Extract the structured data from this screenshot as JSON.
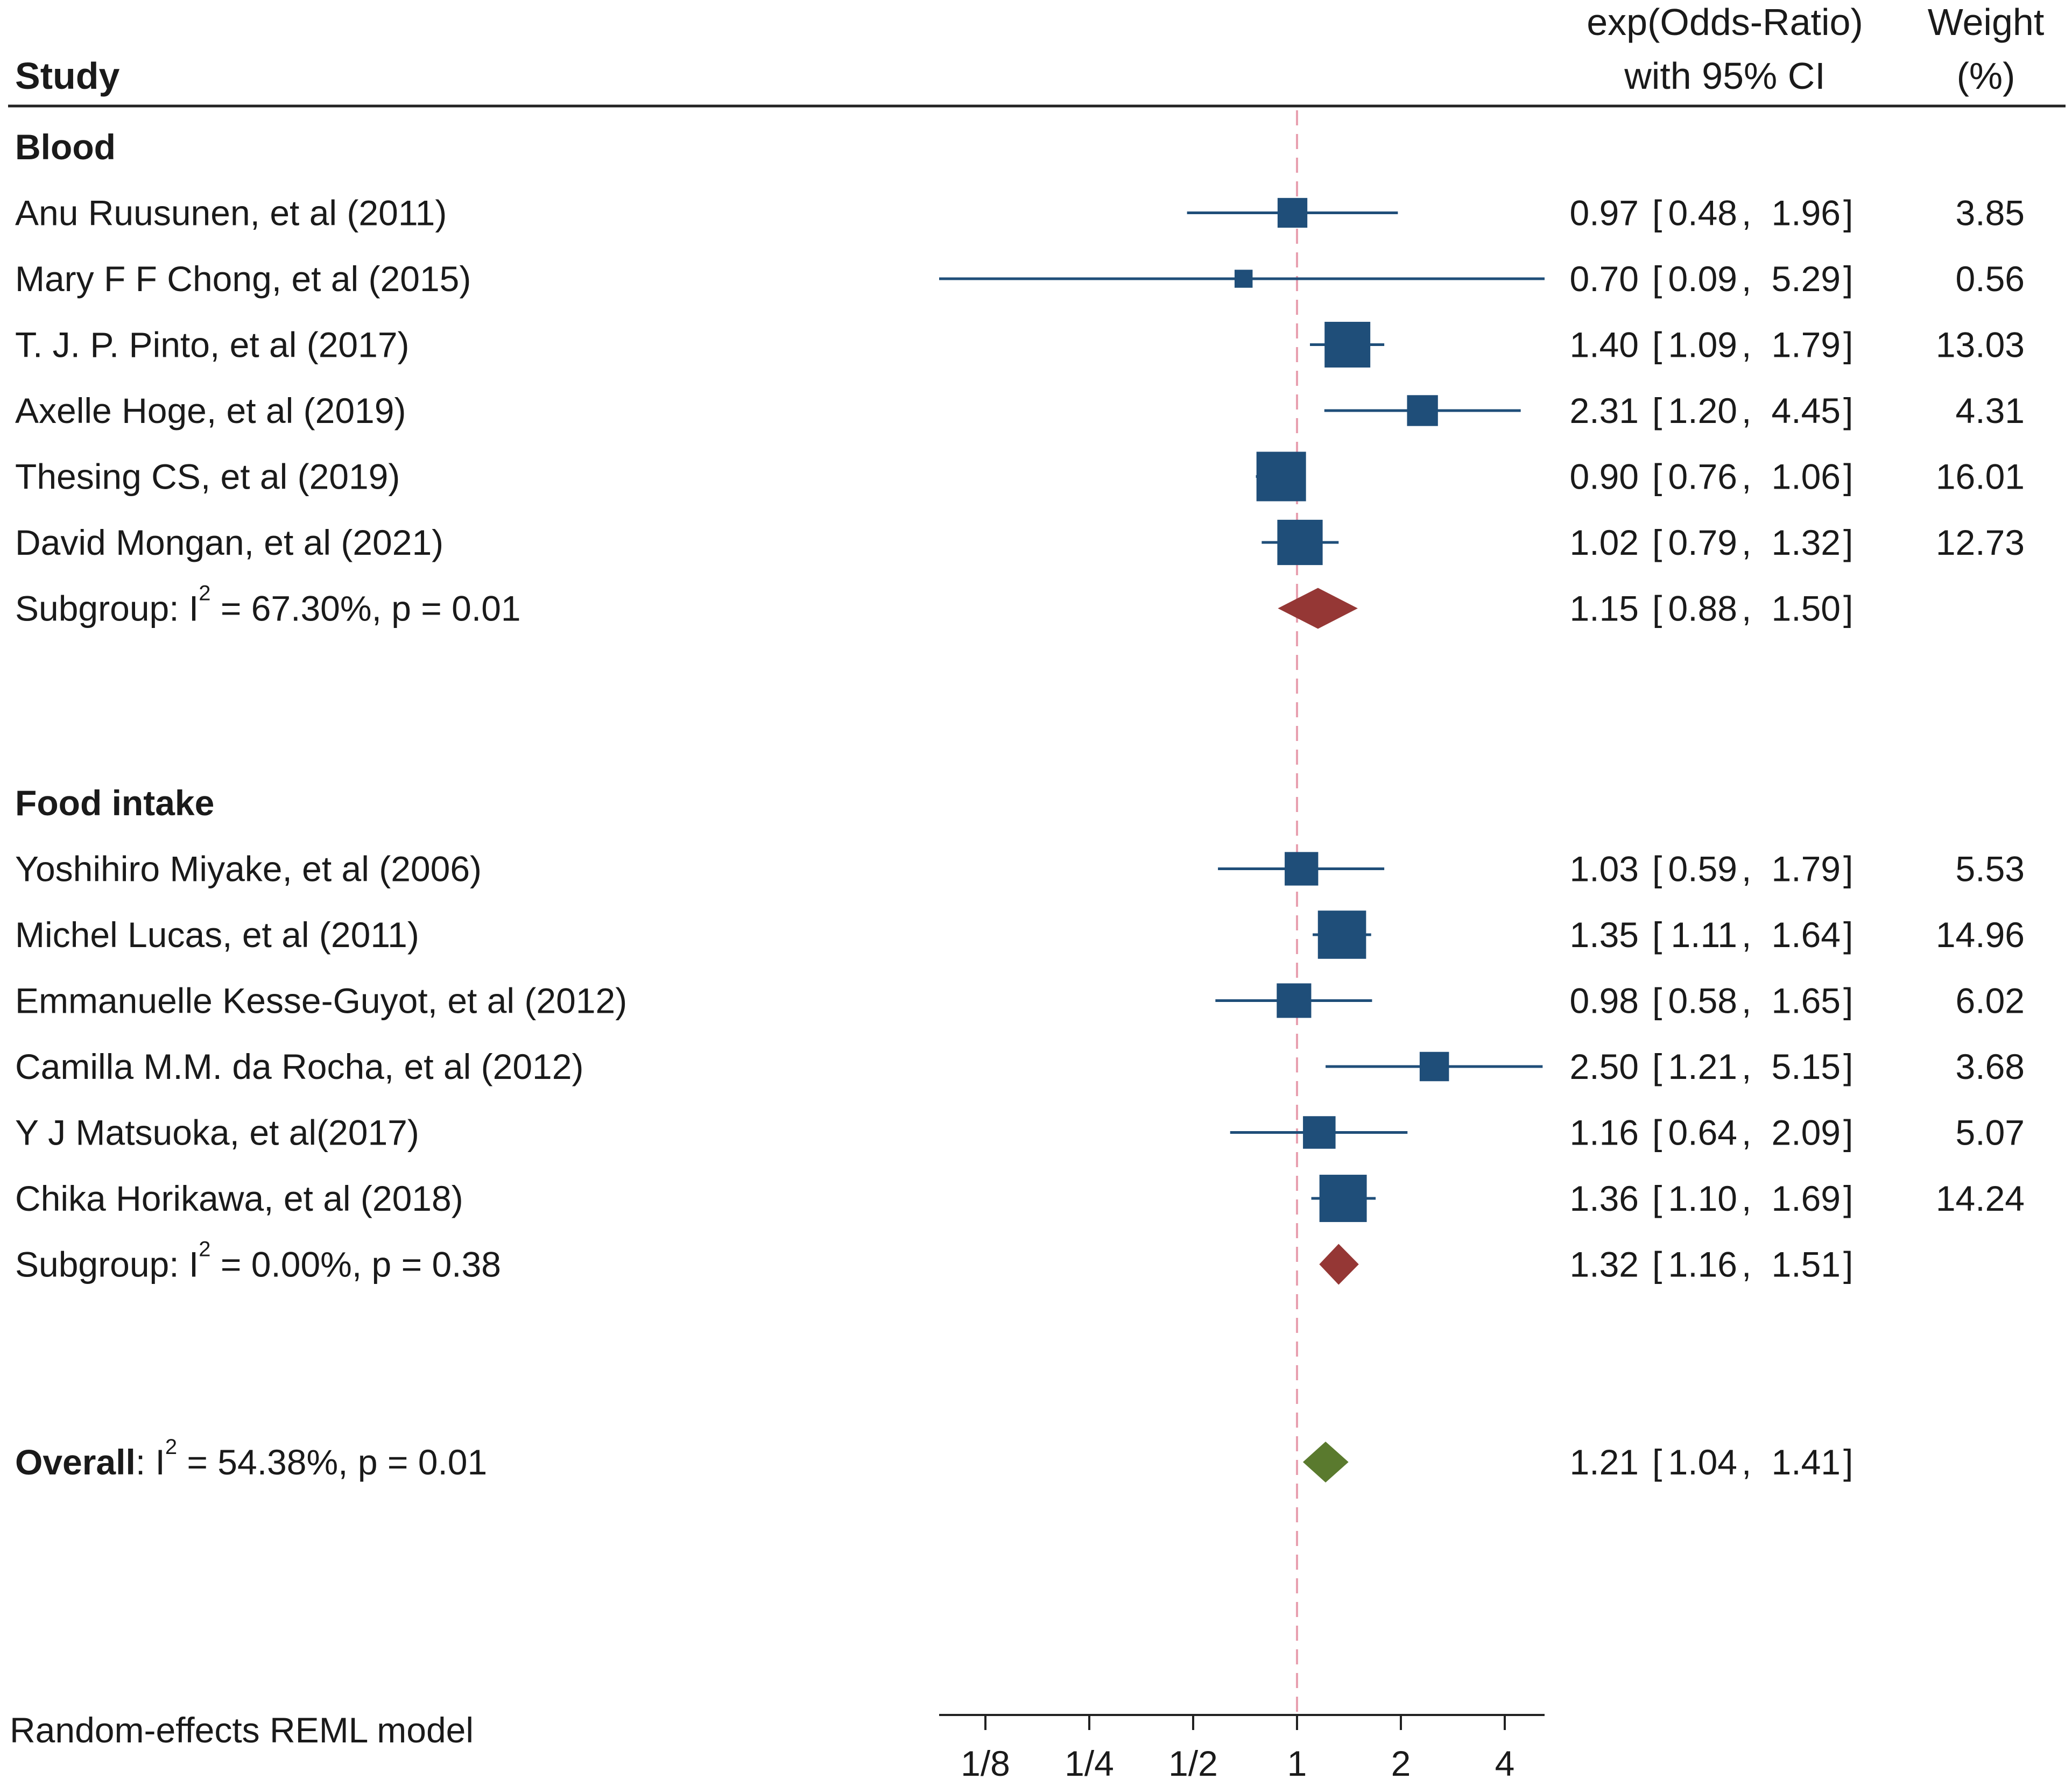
{
  "header": {
    "study_label": "Study",
    "effect_label_line1": "exp(Odds-Ratio)",
    "effect_label_line2": "with 95% CI",
    "weight_label_line1": "Weight",
    "weight_label_line2": "(%)"
  },
  "footer": {
    "model_note": "Random-effects REML model"
  },
  "chart_data": {
    "type": "forest",
    "title": "",
    "xscale": "log2",
    "xlim": [
      0.1,
      5.35
    ],
    "reference_value": 1,
    "ticks": [
      {
        "value": 0.125,
        "label": "1/8"
      },
      {
        "value": 0.25,
        "label": "1/4"
      },
      {
        "value": 0.5,
        "label": "1/2"
      },
      {
        "value": 1,
        "label": "1"
      },
      {
        "value": 2,
        "label": "2"
      },
      {
        "value": 4,
        "label": "4"
      }
    ],
    "groups": [
      {
        "name": "Blood",
        "studies": [
          {
            "study": "Anu Ruusunen, et al (2011)",
            "or": 0.97,
            "lower": 0.48,
            "upper": 1.96,
            "or_text": "0.97",
            "lower_text": "0.48",
            "upper_text": "1.96",
            "weight": 3.85,
            "weight_text": "3.85"
          },
          {
            "study": "Mary F F Chong, et al (2015)",
            "or": 0.7,
            "lower": 0.09,
            "upper": 5.29,
            "or_text": "0.70",
            "lower_text": "0.09",
            "upper_text": "5.29",
            "weight": 0.56,
            "weight_text": "0.56"
          },
          {
            "study": "T. J. P. Pinto, et al (2017)",
            "or": 1.4,
            "lower": 1.09,
            "upper": 1.79,
            "or_text": "1.40",
            "lower_text": "1.09",
            "upper_text": "1.79",
            "weight": 13.03,
            "weight_text": "13.03"
          },
          {
            "study": "Axelle Hoge, et al (2019)",
            "or": 2.31,
            "lower": 1.2,
            "upper": 4.45,
            "or_text": "2.31",
            "lower_text": "1.20",
            "upper_text": "4.45",
            "weight": 4.31,
            "weight_text": "4.31"
          },
          {
            "study": "Thesing CS, et al (2019)",
            "or": 0.9,
            "lower": 0.76,
            "upper": 1.06,
            "or_text": "0.90",
            "lower_text": "0.76",
            "upper_text": "1.06",
            "weight": 16.01,
            "weight_text": "16.01"
          },
          {
            "study": "David Mongan, et al (2021)",
            "or": 1.02,
            "lower": 0.79,
            "upper": 1.32,
            "or_text": "1.02",
            "lower_text": "0.79",
            "upper_text": "1.32",
            "weight": 12.73,
            "weight_text": "12.73"
          }
        ],
        "subgroup": {
          "label_prefix": "Subgroup: I",
          "label_sup": "2",
          "label_suffix": " = 67.30%, p = 0.01",
          "or": 1.15,
          "lower": 0.88,
          "upper": 1.5,
          "or_text": "1.15",
          "lower_text": "0.88",
          "upper_text": "1.50",
          "color": "#953735"
        }
      },
      {
        "name": "Food intake",
        "studies": [
          {
            "study": "Yoshihiro Miyake, et al (2006)",
            "or": 1.03,
            "lower": 0.59,
            "upper": 1.79,
            "or_text": "1.03",
            "lower_text": "0.59",
            "upper_text": "1.79",
            "weight": 5.53,
            "weight_text": "5.53"
          },
          {
            "study": "Michel Lucas, et al (2011)",
            "or": 1.35,
            "lower": 1.11,
            "upper": 1.64,
            "or_text": "1.35",
            "lower_text": "1.11",
            "upper_text": "1.64",
            "weight": 14.96,
            "weight_text": "14.96"
          },
          {
            "study": "Emmanuelle Kesse-Guyot, et al (2012)",
            "or": 0.98,
            "lower": 0.58,
            "upper": 1.65,
            "or_text": "0.98",
            "lower_text": "0.58",
            "upper_text": "1.65",
            "weight": 6.02,
            "weight_text": "6.02"
          },
          {
            "study": "Camilla M.M. da Rocha, et al (2012)",
            "or": 2.5,
            "lower": 1.21,
            "upper": 5.15,
            "or_text": "2.50",
            "lower_text": "1.21",
            "upper_text": "5.15",
            "weight": 3.68,
            "weight_text": "3.68"
          },
          {
            "study": "Y J Matsuoka, et al(2017)",
            "or": 1.16,
            "lower": 0.64,
            "upper": 2.09,
            "or_text": "1.16",
            "lower_text": "0.64",
            "upper_text": "2.09",
            "weight": 5.07,
            "weight_text": "5.07"
          },
          {
            "study": "Chika Horikawa, et al (2018)",
            "or": 1.36,
            "lower": 1.1,
            "upper": 1.69,
            "or_text": "1.36",
            "lower_text": "1.10",
            "upper_text": "1.69",
            "weight": 14.24,
            "weight_text": "14.24"
          }
        ],
        "subgroup": {
          "label_prefix": "Subgroup: I",
          "label_sup": "2",
          "label_suffix": " = 0.00%, p = 0.38",
          "or": 1.32,
          "lower": 1.16,
          "upper": 1.51,
          "or_text": "1.32",
          "lower_text": "1.16",
          "upper_text": "1.51",
          "color": "#953735"
        }
      }
    ],
    "overall": {
      "label_bold": "Overall",
      "label_prefix": ": I",
      "label_sup": "2",
      "label_suffix": " = 54.38%, p = 0.01",
      "or": 1.21,
      "lower": 1.04,
      "upper": 1.41,
      "or_text": "1.21",
      "lower_text": "1.04",
      "upper_text": "1.41",
      "color": "#5a7a2e"
    },
    "marker_color": "#1f4e79",
    "reference_line_color": "#e8a0b0"
  }
}
